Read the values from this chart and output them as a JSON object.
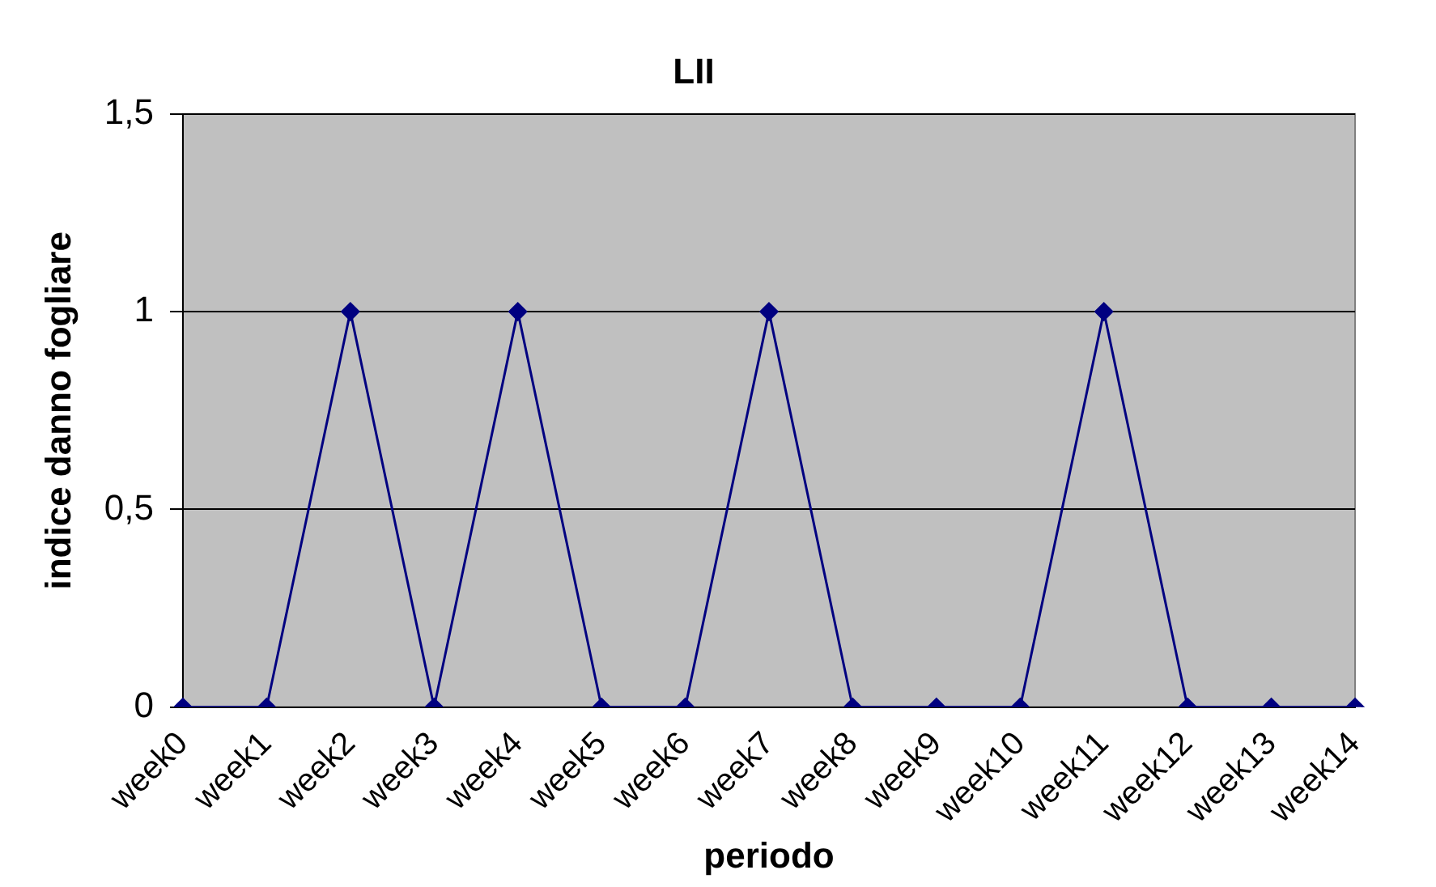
{
  "chart_data": {
    "type": "line",
    "title": "LII",
    "xlabel": "periodo",
    "ylabel": "indice danno fogliare",
    "categories": [
      "week0",
      "week1",
      "week2",
      "week3",
      "week4",
      "week5",
      "week6",
      "week7",
      "week8",
      "week9",
      "week10",
      "week11",
      "week12",
      "week13",
      "week14"
    ],
    "series": [
      {
        "color": "#000080",
        "values": [
          0,
          0,
          1,
          0,
          1,
          0,
          0,
          1,
          0,
          0,
          0,
          1,
          0,
          0,
          0
        ]
      }
    ],
    "ylim": [
      0,
      1.5
    ],
    "yticks": [
      0,
      {
        "value": 0.5,
        "label": "0,5"
      },
      1,
      {
        "value": 1.5,
        "label": "1,5"
      }
    ],
    "grid": "y",
    "legend": false,
    "marker": "diamond",
    "line_style": "solid"
  }
}
